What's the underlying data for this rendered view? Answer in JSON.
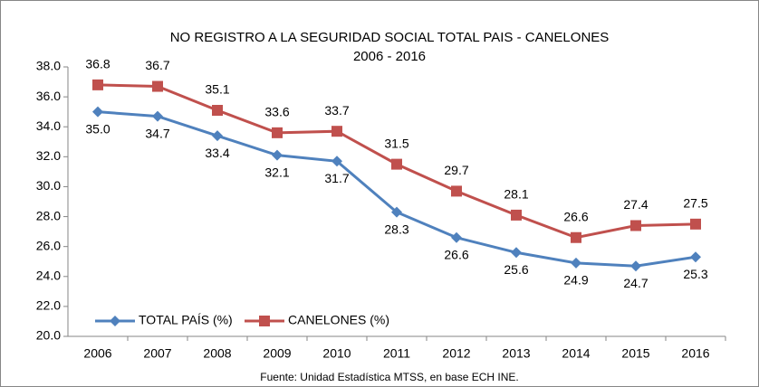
{
  "chart_data": {
    "type": "line",
    "title": "NO REGISTRO A LA SEGURIDAD SOCIAL TOTAL PAIS  - CANELONES",
    "subtitle": "2006 - 2016",
    "source": "Fuente: Unidad Estadística MTSS, en base ECH INE.",
    "categories": [
      "2006",
      "2007",
      "2008",
      "2009",
      "2010",
      "2011",
      "2012",
      "2013",
      "2014",
      "2015",
      "2016"
    ],
    "series": [
      {
        "name": "TOTAL PAÍS (%)",
        "color": "#4f81bd",
        "marker": "diamond",
        "values": [
          35.0,
          34.7,
          33.4,
          32.1,
          31.7,
          28.3,
          26.6,
          25.6,
          24.9,
          24.7,
          25.3
        ],
        "value_labels": [
          "35.0",
          "34.7",
          "33.4",
          "32.1",
          "31.7",
          "28.3",
          "26.6",
          "25.6",
          "24.9",
          "24.7",
          "25.3"
        ]
      },
      {
        "name": "CANELONES (%)",
        "color": "#c0504d",
        "marker": "square",
        "values": [
          36.8,
          36.7,
          35.1,
          33.6,
          33.7,
          31.5,
          29.7,
          28.1,
          26.6,
          27.4,
          27.5
        ],
        "value_labels": [
          "36.8",
          "36.7",
          "35.1",
          "33.6",
          "33.7",
          "31.5",
          "29.7",
          "28.1",
          "26.6",
          "27.4",
          "27.5"
        ]
      }
    ],
    "ylim": [
      20,
      38
    ],
    "yticks": [
      {
        "value": 20,
        "label": "20.0"
      },
      {
        "value": 22,
        "label": "22.0"
      },
      {
        "value": 24,
        "label": "24.0"
      },
      {
        "value": 26,
        "label": "26.0"
      },
      {
        "value": 28,
        "label": "28.0"
      },
      {
        "value": 30,
        "label": "30.0"
      },
      {
        "value": 32,
        "label": "32.0"
      },
      {
        "value": 34,
        "label": "34.0"
      },
      {
        "value": 36,
        "label": "36.0"
      },
      {
        "value": 38,
        "label": "38.0"
      }
    ],
    "grid": false,
    "legend": "lower-left"
  }
}
